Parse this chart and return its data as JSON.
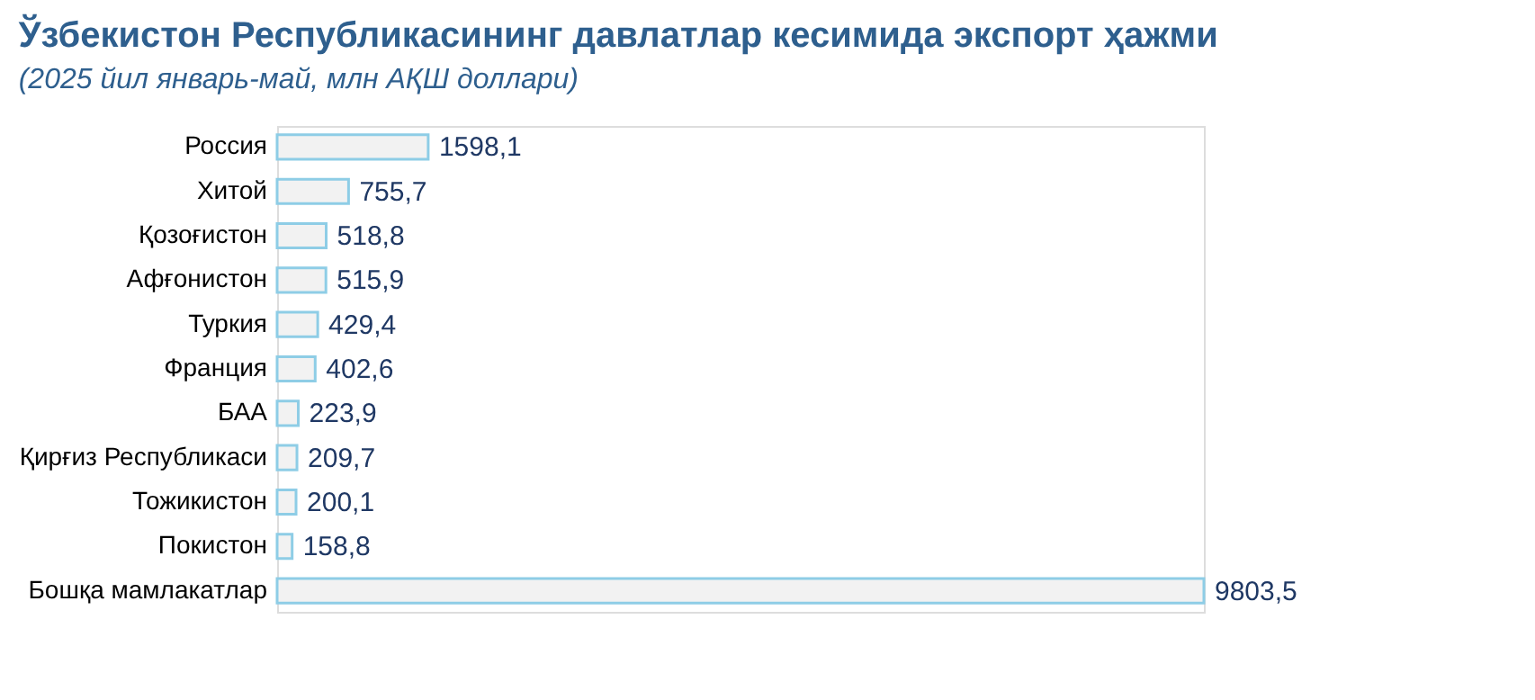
{
  "chart_data": {
    "type": "bar",
    "orientation": "horizontal",
    "title": "Ўзбекистон Республикасининг давлатлар кесимида экспорт ҳажми",
    "subtitle": "(2025 йил январь-май, млн АҚШ доллари)",
    "categories": [
      "Россия",
      "Хитой",
      "Қозоғистон",
      "Афғонистон",
      "Туркия",
      "Франция",
      "БАА",
      "Қирғиз Республикаси",
      "Тожикистон",
      "Покистон",
      "Бошқа мамлакатлар"
    ],
    "values": [
      1598.1,
      755.7,
      518.8,
      515.9,
      429.4,
      402.6,
      223.9,
      209.7,
      200.1,
      158.8,
      9803.5
    ],
    "value_labels": [
      "1598,1",
      "755,7",
      "518,8",
      "515,9",
      "429,4",
      "402,6",
      "223,9",
      "209,7",
      "200,1",
      "158,8",
      "9803,5"
    ],
    "color": "#f2f2f2"
  }
}
